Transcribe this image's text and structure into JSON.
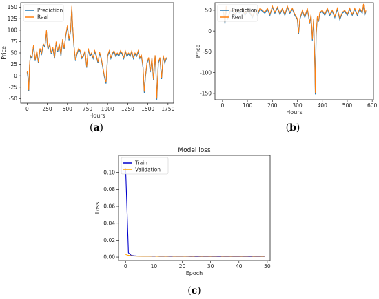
{
  "colors": {
    "prediction": "#1f77b4",
    "real": "#ff7f0e",
    "train": "#0000cc",
    "validation": "#ffa500"
  },
  "captions": [
    "a",
    "b",
    "c"
  ],
  "chart_data": [
    {
      "id": "a",
      "type": "line",
      "title": "",
      "xlabel": "Hours",
      "ylabel": "Price",
      "xlim": [
        -80,
        1820
      ],
      "ylim": [
        -60,
        160
      ],
      "xticks": [
        0,
        250,
        500,
        750,
        1000,
        1250,
        1500,
        1750
      ],
      "yticks": [
        -50,
        -25,
        0,
        25,
        50,
        75,
        100,
        125,
        150
      ],
      "legend": "top-left",
      "series": [
        {
          "name": "Prediction",
          "color": "#1f77b4"
        },
        {
          "name": "Real",
          "color": "#ff7f0e"
        }
      ],
      "x": [
        0,
        10,
        20,
        30,
        40,
        60,
        80,
        100,
        120,
        140,
        160,
        180,
        200,
        220,
        240,
        250,
        260,
        280,
        300,
        320,
        340,
        360,
        380,
        400,
        420,
        440,
        460,
        480,
        500,
        520,
        540,
        555,
        565,
        580,
        600,
        620,
        640,
        660,
        680,
        700,
        720,
        740,
        760,
        780,
        800,
        820,
        840,
        860,
        880,
        900,
        920,
        940,
        960,
        980,
        1000,
        1020,
        1040,
        1060,
        1080,
        1100,
        1120,
        1140,
        1160,
        1180,
        1200,
        1220,
        1240,
        1260,
        1280,
        1300,
        1320,
        1340,
        1360,
        1380,
        1400,
        1420,
        1440,
        1455,
        1470,
        1490,
        1510,
        1530,
        1550,
        1570,
        1590,
        1600,
        1610,
        1630,
        1650,
        1670,
        1690,
        1710,
        1730
      ],
      "values": [
        10,
        0,
        -32,
        25,
        45,
        40,
        68,
        35,
        55,
        30,
        60,
        50,
        70,
        65,
        100,
        70,
        60,
        70,
        50,
        62,
        40,
        75,
        55,
        70,
        45,
        80,
        60,
        90,
        110,
        80,
        100,
        153,
        110,
        70,
        35,
        50,
        60,
        55,
        40,
        45,
        55,
        20,
        60,
        45,
        50,
        40,
        55,
        45,
        30,
        52,
        40,
        20,
        0,
        -15,
        45,
        55,
        40,
        50,
        55,
        45,
        50,
        45,
        55,
        50,
        40,
        55,
        45,
        50,
        45,
        55,
        40,
        50,
        45,
        55,
        40,
        45,
        20,
        -35,
        0,
        30,
        40,
        10,
        40,
        -8,
        45,
        15,
        -50,
        30,
        40,
        -5,
        45,
        30,
        40
      ]
    },
    {
      "id": "b",
      "type": "line",
      "title": "",
      "xlabel": "Hours",
      "ylabel": "Price",
      "xlim": [
        -30,
        605
      ],
      "ylim": [
        -165,
        68
      ],
      "xticks": [
        0,
        100,
        200,
        300,
        400,
        500,
        600
      ],
      "yticks": [
        -150,
        -100,
        -50,
        0,
        50
      ],
      "legend": "top-left",
      "series": [
        {
          "name": "Prediction",
          "color": "#1f77b4"
        },
        {
          "name": "Real",
          "color": "#ff7f0e"
        }
      ],
      "x": [
        0,
        5,
        10,
        15,
        20,
        30,
        40,
        50,
        60,
        70,
        80,
        90,
        100,
        110,
        120,
        130,
        140,
        150,
        160,
        170,
        180,
        190,
        200,
        210,
        220,
        230,
        240,
        250,
        260,
        270,
        280,
        290,
        300,
        305,
        310,
        320,
        330,
        340,
        350,
        355,
        360,
        365,
        370,
        372,
        375,
        380,
        385,
        390,
        400,
        410,
        420,
        430,
        440,
        450,
        460,
        470,
        480,
        490,
        500,
        510,
        520,
        530,
        540,
        550,
        560,
        565,
        570,
        575
      ],
      "values": [
        50,
        45,
        20,
        60,
        30,
        48,
        52,
        40,
        50,
        45,
        55,
        40,
        50,
        45,
        35,
        50,
        40,
        55,
        50,
        45,
        55,
        40,
        60,
        45,
        58,
        42,
        55,
        40,
        60,
        45,
        55,
        40,
        30,
        -5,
        30,
        50,
        35,
        55,
        20,
        40,
        -20,
        30,
        -80,
        -150,
        -10,
        35,
        25,
        45,
        50,
        40,
        55,
        40,
        50,
        35,
        55,
        30,
        45,
        50,
        40,
        55,
        40,
        55,
        40,
        55,
        45,
        65,
        40,
        50
      ]
    },
    {
      "id": "c",
      "type": "line",
      "title": "Model loss",
      "xlabel": "Epoch",
      "ylabel": "Loss",
      "xlim": [
        -2.5,
        51
      ],
      "ylim": [
        -0.004,
        0.12
      ],
      "xticks": [
        0,
        10,
        20,
        30,
        40,
        50
      ],
      "yticks": [
        0.0,
        0.02,
        0.04,
        0.06,
        0.08,
        0.1
      ],
      "ytick_labels": [
        "0.00",
        "0.02",
        "0.04",
        "0.06",
        "0.08",
        "0.10"
      ],
      "legend": "top-left",
      "x": [
        0,
        1,
        2,
        3,
        4,
        5,
        6,
        7,
        8,
        9,
        10,
        11,
        12,
        13,
        14,
        15,
        16,
        17,
        18,
        19,
        20,
        21,
        22,
        23,
        24,
        25,
        26,
        27,
        28,
        29,
        30,
        31,
        32,
        33,
        34,
        35,
        36,
        37,
        38,
        39,
        40,
        41,
        42,
        43,
        44,
        45,
        46,
        47,
        48,
        49
      ],
      "series": [
        {
          "name": "Train",
          "color": "#0000cc",
          "values": [
            0.105,
            0.005,
            0.002,
            0.0015,
            0.0012,
            0.0011,
            0.001,
            0.001,
            0.001,
            0.0009,
            0.0009,
            0.0009,
            0.0008,
            0.0008,
            0.0008,
            0.0008,
            0.0008,
            0.0008,
            0.0008,
            0.0008,
            0.0008,
            0.0008,
            0.0008,
            0.0007,
            0.0007,
            0.0007,
            0.0007,
            0.0007,
            0.0007,
            0.0007,
            0.0007,
            0.0007,
            0.0007,
            0.0007,
            0.0007,
            0.0007,
            0.0007,
            0.0007,
            0.0007,
            0.0007,
            0.0007,
            0.0007,
            0.0007,
            0.0007,
            0.0007,
            0.0007,
            0.0007,
            0.0007,
            0.0007,
            0.0007
          ]
        },
        {
          "name": "Validation",
          "color": "#ffa500",
          "values": [
            0.003,
            0.002,
            0.0015,
            0.0012,
            0.0011,
            0.001,
            0.001,
            0.0011,
            0.001,
            0.001,
            0.0012,
            0.0009,
            0.001,
            0.0011,
            0.0009,
            0.001,
            0.0012,
            0.0009,
            0.001,
            0.0011,
            0.001,
            0.0009,
            0.0011,
            0.001,
            0.0009,
            0.0012,
            0.001,
            0.0009,
            0.0011,
            0.001,
            0.0009,
            0.0011,
            0.001,
            0.0012,
            0.0009,
            0.001,
            0.0011,
            0.0009,
            0.001,
            0.0011,
            0.001,
            0.0009,
            0.0011,
            0.001,
            0.0012,
            0.0009,
            0.001,
            0.0011,
            0.0009,
            0.001
          ]
        }
      ]
    }
  ]
}
